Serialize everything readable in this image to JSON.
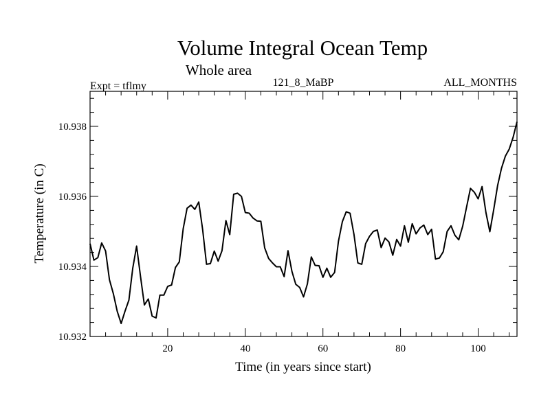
{
  "chart_data": {
    "type": "line",
    "title": "Volume Integral Ocean Temp",
    "subtitle": "Whole area",
    "left_label": "Expt = tflmy",
    "center_label": "121_8_MaBP",
    "right_label": "ALL_MONTHS",
    "xlabel": "Time (in years since start)",
    "ylabel": "Temperature (in C)",
    "xlim": [
      0,
      110
    ],
    "ylim": [
      10.932,
      10.939
    ],
    "x_ticks": [
      20,
      40,
      60,
      80,
      100
    ],
    "y_ticks": [
      10.932,
      10.934,
      10.936,
      10.938
    ],
    "y_tick_labels": [
      "10.932",
      "10.934",
      "10.936",
      "10.938"
    ],
    "series": [
      {
        "name": "volume integral ocean temp",
        "x": [
          0,
          1,
          2,
          3,
          4,
          5,
          6,
          7,
          8,
          9,
          10,
          11,
          12,
          13,
          14,
          15,
          16,
          17,
          18,
          19,
          20,
          21,
          22,
          23,
          24,
          25,
          26,
          27,
          28,
          29,
          30,
          31,
          32,
          33,
          34,
          35,
          36,
          37,
          38,
          39,
          40,
          41,
          42,
          43,
          44,
          45,
          46,
          47,
          48,
          49,
          50,
          51,
          52,
          53,
          54,
          55,
          56,
          57,
          58,
          59,
          60,
          61,
          62,
          63,
          64,
          65,
          66,
          67,
          68,
          69,
          70,
          71,
          72,
          73,
          74,
          75,
          76,
          77,
          78,
          79,
          80,
          81,
          82,
          83,
          84,
          85,
          86,
          87,
          88,
          89,
          90,
          91,
          92,
          93,
          94,
          95,
          96,
          97,
          98,
          99,
          100,
          101,
          102,
          103,
          104,
          105,
          106,
          107,
          108,
          109,
          110
        ],
        "values": [
          10.93465,
          10.93418,
          10.93425,
          10.93467,
          10.93444,
          10.93362,
          10.93322,
          10.93272,
          10.93237,
          10.93272,
          10.93304,
          10.93395,
          10.93458,
          10.93371,
          10.9329,
          10.93307,
          10.93258,
          10.93253,
          10.93318,
          10.93318,
          10.93343,
          10.93347,
          10.93397,
          10.93413,
          10.93508,
          10.93566,
          10.93575,
          10.93563,
          10.93584,
          10.93506,
          10.93406,
          10.93408,
          10.93444,
          10.93415,
          10.93445,
          10.93531,
          10.93491,
          10.93606,
          10.93609,
          10.936,
          10.93554,
          10.93552,
          10.93538,
          10.9353,
          10.93529,
          10.93453,
          10.93423,
          10.9341,
          10.93399,
          10.93399,
          10.93371,
          10.93445,
          10.93386,
          10.93349,
          10.9334,
          10.93313,
          10.9335,
          10.93427,
          10.93403,
          10.93402,
          10.93369,
          10.93395,
          10.93369,
          10.93383,
          10.93472,
          10.93528,
          10.93556,
          10.93552,
          10.93491,
          10.9341,
          10.93406,
          10.93465,
          10.93486,
          10.935,
          10.93504,
          10.93454,
          10.93481,
          10.9347,
          10.93432,
          10.93477,
          10.93458,
          10.93516,
          10.93469,
          10.93522,
          10.93493,
          10.9351,
          10.93518,
          10.93491,
          10.93506,
          10.93421,
          10.93424,
          10.93442,
          10.935,
          10.93516,
          10.93489,
          10.93476,
          10.93515,
          10.93569,
          10.93623,
          10.93612,
          10.93593,
          10.93628,
          10.93554,
          10.93499,
          10.93562,
          10.93631,
          10.9368,
          10.93715,
          10.93735,
          10.93769,
          10.93813
        ]
      }
    ]
  }
}
